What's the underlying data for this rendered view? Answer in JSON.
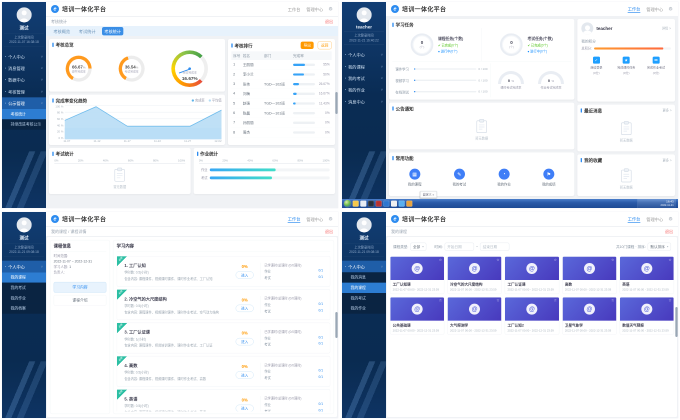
{
  "app": {
    "title": "培训一体化平台",
    "logo_glyph": "e",
    "nav": {
      "workbench": "工作台",
      "admin": "管理中心"
    },
    "colors": {
      "accent": "#2d8cf0",
      "red": "#f56c6c",
      "orange": "#ff9900",
      "sidebar": "#0a2a4e",
      "taskbar": "#2a5aa8"
    }
  },
  "sidebar1": {
    "name": "测试",
    "login_label": "上次登录时间",
    "login_time": "2022-11-07 16:38:18",
    "menus": [
      {
        "t": "个人中心"
      },
      {
        "t": "消息管理"
      },
      {
        "t": "数据中心"
      },
      {
        "t": "考核管理"
      },
      {
        "t": "公示管理",
        "cls": "open"
      }
    ],
    "subs": [
      {
        "t": "考核统计",
        "cls": "on"
      },
      {
        "t": "持续改进考核公示"
      }
    ]
  },
  "sidebar2": {
    "name": "teacher",
    "login_label": "上次登录时间",
    "login_time": "2022-11-21 16:40:22",
    "menus": [
      {
        "t": "个人中心"
      },
      {
        "t": "我的课程"
      },
      {
        "t": "我的考试"
      },
      {
        "t": "我的作业"
      },
      {
        "t": "消息中心"
      }
    ],
    "subs": []
  },
  "sidebar3": {
    "name": "测试",
    "login_label": "上次登录时间",
    "login_time": "2022-11-21 09:08:18",
    "menus": [
      {
        "t": "个人中心",
        "cls": "open"
      }
    ],
    "subs": [
      {
        "t": "我的课程",
        "cls": "on"
      },
      {
        "t": "我的考试"
      },
      {
        "t": "我的作业"
      },
      {
        "t": "我的档案"
      }
    ]
  },
  "sidebar4": {
    "name": "测试",
    "login_label": "上次登录时间",
    "login_time": "2022-11-21 09:08:18",
    "menus": [
      {
        "t": "个人中心",
        "cls": "open"
      }
    ],
    "subs": [
      {
        "t": "我的消息"
      },
      {
        "t": "我的课程",
        "cls": "on"
      },
      {
        "t": "我的考试"
      },
      {
        "t": "我的作业"
      }
    ]
  },
  "p1": {
    "crumb": "考核统计",
    "exit": "退出",
    "tabs": [
      {
        "t": "考核概览"
      },
      {
        "t": "考试统计"
      },
      {
        "t": "考核统计",
        "cls": "on"
      }
    ],
    "overview": {
      "title": "考核总览",
      "g1": {
        "value": "66.67",
        "unit": "%",
        "label": "课件完成率",
        "pct": 66.67
      },
      "g2": {
        "value": "36.54",
        "unit": "%",
        "label": "考试完成率",
        "pct": 36.54
      },
      "g3": {
        "value": "16.67%",
        "label": "综合完成率",
        "pct": 16.67
      }
    },
    "trend": {
      "title": "完成率变化趋势",
      "legend": [
        {
          "t": "完成率",
          "c": "#5cb3e8"
        },
        {
          "t": "平均值",
          "c": "#b3dcf5"
        }
      ],
      "y": [
        "100 %",
        "80 %",
        "60 %",
        "40 %",
        "20 %",
        "0 %"
      ],
      "x": [
        "11-07",
        "11-12",
        "11-17",
        "11-22",
        "11-27",
        "12-02"
      ],
      "values": [
        55,
        95,
        38,
        38,
        38,
        85
      ]
    },
    "exam": {
      "title": "考试统计",
      "axis": [
        "0%",
        "20%",
        "40%",
        "60%",
        "80%",
        "100%"
      ],
      "empty": "暂无数据"
    },
    "homework": {
      "title": "作业统计",
      "axis": [
        "0%",
        "20%",
        "40%",
        "60%",
        "80%",
        "100%"
      ],
      "rows": [
        {
          "label": "作业",
          "pct": "55%"
        },
        {
          "label": "考试",
          "pct": "52%"
        }
      ]
    },
    "rank": {
      "title": "考核排行",
      "export_btn": "导出",
      "back_btn": "返回",
      "cols": [
        "序号",
        "姓名",
        "部门",
        "完成率"
      ],
      "rows": [
        {
          "i": "1",
          "n": "王丽丽",
          "d": "",
          "p": "55%"
        },
        {
          "i": "2",
          "n": "李小兰",
          "d": "",
          "p": "50%"
        },
        {
          "i": "3",
          "n": "张伟",
          "d": "TGD—102班",
          "p": "26.67%"
        },
        {
          "i": "4",
          "n": "刘梅",
          "d": "",
          "p": "16.67%"
        },
        {
          "i": "5",
          "n": "赵强",
          "d": "TGD—102班",
          "p": "11.43%"
        },
        {
          "i": "6",
          "n": "陈晨",
          "d": "TGD—101班",
          "p": "0%"
        },
        {
          "i": "7",
          "n": "孙丽丽",
          "d": "",
          "p": "0%"
        },
        {
          "i": "8",
          "n": "周杰",
          "d": "",
          "p": "0%"
        }
      ]
    }
  },
  "p2": {
    "task_card": {
      "title": "学习任务",
      "rings": [
        {
          "value": "0",
          "unit": "(个)",
          "name": "课程任务(个数)",
          "done": "✔ 已完成(0个)",
          "doing": "● 进行中(0个)"
        },
        {
          "value": "0",
          "unit": "(个)",
          "name": "考试任务(个数)",
          "done": "✔ 已完成(0个)",
          "doing": "● 进行中(0个)"
        }
      ],
      "progress": [
        {
          "label": "课件学习",
          "value": "0 / 100"
        },
        {
          "label": "视频学习",
          "value": "0 / 100"
        },
        {
          "label": "在线测试",
          "value": "0 / 100"
        }
      ],
      "gauges": [
        {
          "value": "0",
          "unit": "%",
          "label": "课时考试完成率"
        },
        {
          "value": "0",
          "unit": "%",
          "label": "作业考试完成率"
        }
      ]
    },
    "profile": {
      "name": "teacher",
      "more": "详情 >",
      "score_label": "我的积分",
      "bar_label": "总积分:",
      "bar_pct": "90%",
      "stats": [
        {
          "icon": "✓",
          "label": "连续登录",
          "value": "(0分)"
        },
        {
          "icon": "★",
          "label": "完成课时任务",
          "value": "(0分)"
        },
        {
          "icon": "✉",
          "label": "完成作业考试",
          "value": "(0分)"
        }
      ]
    },
    "notice": {
      "title": "公告通知",
      "empty": "暂无数据"
    },
    "message": {
      "title": "最近消息",
      "more": "更多 >",
      "empty": "暂无数据"
    },
    "quick": {
      "title": "常用功能",
      "items": [
        {
          "icon": "▦",
          "label": "我的课程"
        },
        {
          "icon": "✎",
          "label": "我的考试"
        },
        {
          "icon": "◔",
          "label": "我的作业"
        },
        {
          "icon": "⚑",
          "label": "我的成绩"
        }
      ]
    },
    "fav": {
      "title": "我的收藏",
      "more": "更多 >",
      "empty": "暂无数据"
    },
    "taskbar": {
      "time": "16:43",
      "date": "2022-11-21",
      "tooltip": "自定义 »",
      "icons": [
        {
          "c": "#f5c84c"
        },
        {
          "c": "#e7ecf3"
        },
        {
          "c": "#27303b"
        },
        {
          "c": "#b8312f"
        },
        {
          "c": "#2e77d0"
        },
        {
          "c": "#f0f0f0"
        },
        {
          "c": "#58b0f0"
        },
        {
          "c": "#e8a33d"
        }
      ]
    }
  },
  "p3": {
    "crumb": "我的课程 / 课程详情",
    "exit": "退出",
    "info": {
      "title": "课程信息",
      "r1l": "时间范围:",
      "r1v": "2022-11-07 ~ 2022-12-31",
      "r2l": "学习人数:",
      "r2v": "1",
      "r3l": "负责人:",
      "r3v": "",
      "tabs": [
        {
          "t": "学习内容",
          "cls": "on"
        },
        {
          "t": "课程介绍"
        }
      ]
    },
    "list": {
      "title": "学习内容",
      "ribbon": "必修",
      "items": [
        {
          "title": "1. 工厂认知",
          "meta": "学时数: 0.5(小时)",
          "desc": "包含内容: 课程课件、视频课时课件、课时作业考试、工厂认知",
          "pct": "0%",
          "btn": "进入",
          "rt": "已学课时/总课时 (0/0课时)",
          "r1l": "作业",
          "r1v": "0/1",
          "r2l": "考试",
          "r2v": "0/1"
        },
        {
          "title": "2. 冷空气的大尺度结构",
          "meta": "学时数: 0.5(小时)",
          "desc": "包含内容: 课程课件、视频课时课件、课时作业考试、空气动力结构",
          "pct": "0%",
          "btn": "进入",
          "rt": "已学课时/总课时 (0/0课时)",
          "r1l": "作业",
          "r1v": "0/1",
          "r2l": "考试",
          "r2v": "0/1"
        },
        {
          "title": "3. 工厂认证课",
          "meta": "学时数: 1(小时)",
          "desc": "包含内容: 课程课件、师资培训课件、课时作业考试、工厂认证",
          "pct": "0%",
          "btn": "进入",
          "rt": "已学课时/总课时 (0/0课时)",
          "r1l": "作业",
          "r1v": "0/1",
          "r2l": "考试",
          "r2v": "0/1"
        },
        {
          "title": "4. 高数",
          "meta": "学时数: 0.5(小时)",
          "desc": "包含内容: 课程课件、视频课时课件、课时作业考试、高数",
          "pct": "0%",
          "btn": "进入",
          "rt": "已学课时/总课时 (0/0课时)",
          "r1l": "作业",
          "r1v": "0/1",
          "r2l": "考试",
          "r2v": "0/1"
        },
        {
          "title": "5. 英语",
          "meta": "学时数: 0.5(小时)",
          "desc": "包含内容: 课程课件、视频课时课件、课时作业考试、英语",
          "pct": "0%",
          "btn": "进入",
          "rt": "已学课时/总课时 (0/0课时)",
          "r1l": "作业",
          "r1v": "0/1",
          "r2l": "考试",
          "r2v": "0/1"
        }
      ]
    }
  },
  "p4": {
    "crumb": "我的课程",
    "exit": "退出",
    "filter": {
      "type_label": "课程类型:",
      "type_value": "全部",
      "time_label": "时间:",
      "start": "开始日期",
      "sep": "~",
      "end": "结束日期",
      "right_label": "共10门课程 · 排序:",
      "sort_value": "默认排序"
    },
    "date_range": "2022-11-07 00:00 - 2022-12-31 23:59",
    "cards": [
      {
        "title": "工厂认知课"
      },
      {
        "title": "冷空气的大尺度结构"
      },
      {
        "title": "工厂认证课"
      },
      {
        "title": "高数"
      },
      {
        "title": "英语"
      },
      {
        "title": "公共基础课"
      },
      {
        "title": "大气探测学"
      },
      {
        "title": "工厂认知2"
      },
      {
        "title": "卫星气象学"
      },
      {
        "title": "数值天气预报"
      }
    ]
  }
}
